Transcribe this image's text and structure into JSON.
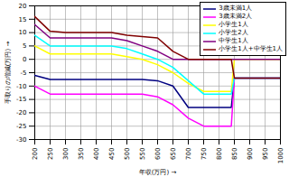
{
  "chart_data": {
    "type": "line",
    "x_label": "年収(万円)",
    "y_label": "手取りの増減(万円)",
    "x": [
      200,
      250,
      300,
      350,
      400,
      450,
      500,
      550,
      600,
      650,
      700,
      750,
      800,
      840,
      850,
      900,
      950,
      1000
    ],
    "series": [
      {
        "name": "3歳未満1人",
        "color": "#000080",
        "values": [
          -6,
          -7.5,
          -7.5,
          -7.5,
          -7.5,
          -7.5,
          -7.5,
          -7.5,
          -8,
          -10,
          -18,
          -18,
          -18,
          -18,
          -7,
          -7,
          -7,
          -7
        ]
      },
      {
        "name": "3歳未満2人",
        "color": "#ff00ff",
        "values": [
          -10,
          -13,
          -13,
          -13,
          -13,
          -13,
          -13,
          -13,
          -14,
          -17,
          -22,
          -25,
          -25,
          -25,
          -7,
          -7,
          -7,
          -7
        ]
      },
      {
        "name": "小学生1人",
        "color": "#ffff00",
        "values": [
          5,
          2,
          2,
          2,
          2,
          2,
          1,
          0,
          -2,
          -5,
          -9,
          -12,
          -12,
          -12,
          0,
          0,
          0,
          0
        ]
      },
      {
        "name": "小学生2人",
        "color": "#00ffff",
        "values": [
          9,
          5,
          5,
          5,
          5,
          5,
          4,
          2,
          0,
          -3,
          -8,
          -13,
          -13,
          -13,
          -7,
          -7,
          -7,
          -7
        ]
      },
      {
        "name": "中学生1人",
        "color": "#800080",
        "values": [
          13,
          8,
          8,
          8,
          8,
          8,
          7,
          5,
          3,
          0,
          0,
          0,
          0,
          0,
          0,
          0,
          0,
          0
        ]
      },
      {
        "name": "小学生1人+中学生1人",
        "color": "#800000",
        "values": [
          16,
          10.5,
          10,
          10,
          10,
          10,
          9,
          8.5,
          8,
          3,
          0,
          0,
          0,
          0,
          -7,
          -7,
          -7,
          -7
        ]
      }
    ],
    "xlim": [
      200,
      1000
    ],
    "xticks": [
      200,
      250,
      300,
      350,
      400,
      450,
      500,
      550,
      600,
      650,
      700,
      750,
      800,
      850,
      900,
      950,
      1000
    ],
    "ylim": [
      -30,
      20
    ],
    "yticks": [
      -30,
      -25,
      -20,
      -15,
      -10,
      -5,
      0,
      5,
      10,
      15,
      20
    ],
    "grid": true,
    "legend": "top-right"
  }
}
